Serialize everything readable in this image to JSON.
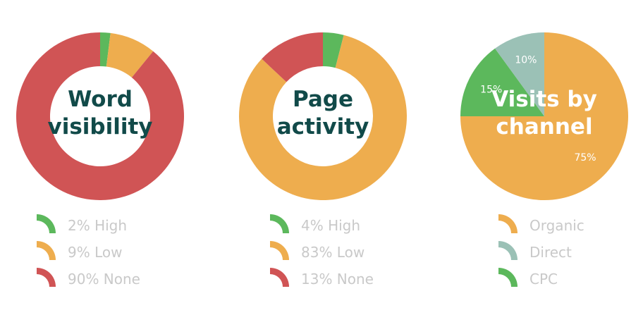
{
  "colors": {
    "high": "#5cb85c",
    "low": "#eead4e",
    "none": "#d05455",
    "organic": "#eead4e",
    "direct": "#9bc1b6",
    "cpc": "#5cb85c",
    "title_dark": "#114a49",
    "legend_text": "#c9c9c9"
  },
  "chart_data": [
    {
      "type": "pie",
      "style": "donut",
      "title_lines": [
        "Word",
        "visibility"
      ],
      "slices": [
        {
          "label": "High",
          "value": 2,
          "color": "#5cb85c"
        },
        {
          "label": "Low",
          "value": 9,
          "color": "#eead4e"
        },
        {
          "label": "None",
          "value": 90,
          "color": "#d05455"
        }
      ],
      "legend": [
        {
          "text": "2% High",
          "color": "#5cb85c"
        },
        {
          "text": "9% Low",
          "color": "#eead4e"
        },
        {
          "text": "90% None",
          "color": "#d05455"
        }
      ]
    },
    {
      "type": "pie",
      "style": "donut",
      "title_lines": [
        "Page",
        "activity"
      ],
      "slices": [
        {
          "label": "High",
          "value": 4,
          "color": "#5cb85c"
        },
        {
          "label": "Low",
          "value": 83,
          "color": "#eead4e"
        },
        {
          "label": "None",
          "value": 13,
          "color": "#d05455"
        }
      ],
      "legend": [
        {
          "text": "4% High",
          "color": "#5cb85c"
        },
        {
          "text": "83% Low",
          "color": "#eead4e"
        },
        {
          "text": "13% None",
          "color": "#d05455"
        }
      ]
    },
    {
      "type": "pie",
      "style": "pie",
      "title_lines": [
        "Visits by",
        "channel"
      ],
      "slices": [
        {
          "label": "Organic",
          "value": 75,
          "display": "75%",
          "color": "#eead4e"
        },
        {
          "label": "CPC",
          "value": 15,
          "display": "15%",
          "color": "#5cb85c"
        },
        {
          "label": "Direct",
          "value": 10,
          "display": "10%",
          "color": "#9bc1b6"
        }
      ],
      "legend": [
        {
          "text": "Organic",
          "color": "#eead4e"
        },
        {
          "text": "Direct",
          "color": "#9bc1b6"
        },
        {
          "text": "CPC",
          "color": "#5cb85c"
        }
      ]
    }
  ]
}
